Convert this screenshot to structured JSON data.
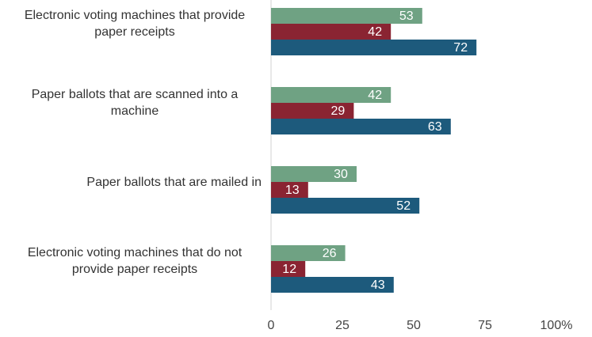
{
  "chart_data": {
    "type": "bar",
    "orientation": "horizontal",
    "categories": [
      "Electronic voting machines that provide paper receipts",
      "Paper ballots that are scanned into a machine",
      "Paper ballots that are mailed in",
      "Electronic voting machines that do not provide paper receipts"
    ],
    "series": [
      {
        "color": "#6fa283",
        "values": [
          53,
          42,
          30,
          26
        ]
      },
      {
        "color": "#8a2432",
        "values": [
          42,
          29,
          13,
          12
        ]
      },
      {
        "color": "#1d5a7c",
        "values": [
          72,
          63,
          52,
          43
        ]
      }
    ],
    "xlim": [
      0,
      100
    ],
    "xticks": [
      0,
      25,
      50,
      75,
      {
        "value": 100,
        "label": "100%"
      }
    ]
  }
}
